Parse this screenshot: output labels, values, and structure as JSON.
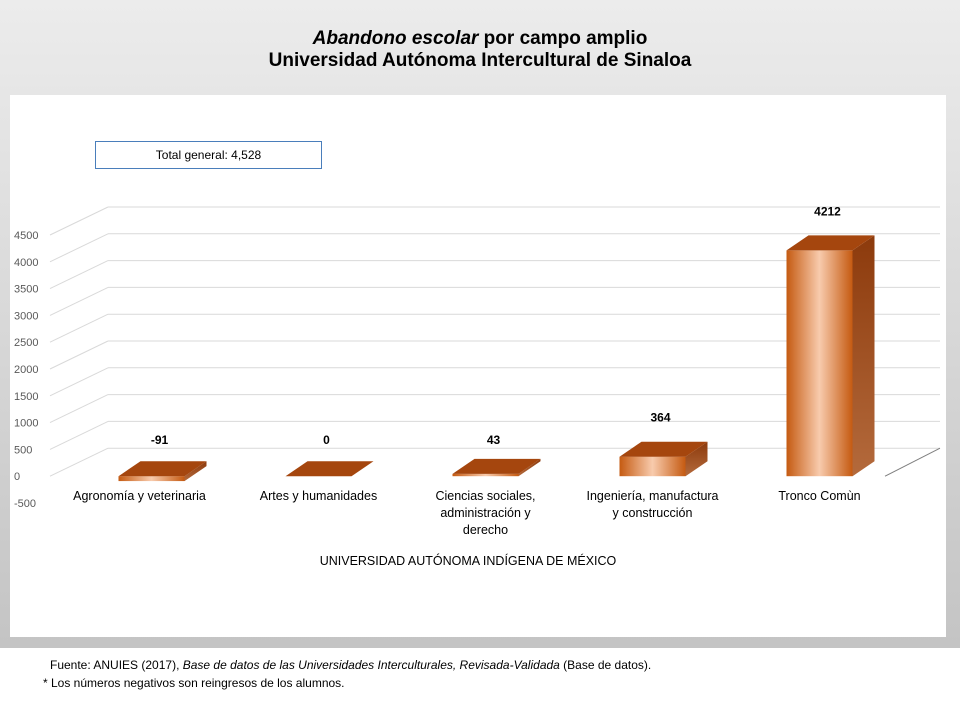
{
  "title": {
    "italic_part": "Abandono escolar",
    "rest": " por campo amplio",
    "subtitle": "Universidad Autónoma Intercultural de Sinaloa"
  },
  "total_box": "Total  general: 4,528",
  "footer": {
    "source_prefix": "Fuente: ANUIES (2017),  ",
    "source_italic": "Base de datos de las Universidades  Interculturales, Revisada-Validada",
    "source_suffix": "  (Base de datos).",
    "note": "* Los números negativos  son reingresos  de los alumnos."
  },
  "colors": {
    "bar_front_dark": "#c55a11",
    "bar_front_light": "#f8cbad",
    "bar_top": "#a5460e",
    "bar_side": "#8c3a0c",
    "grid": "#d9d9d9"
  },
  "chart_data": {
    "type": "bar",
    "title": "Abandono escolar por campo amplio — Universidad Autónoma Intercultural de Sinaloa",
    "xlabel": "UNIVERSIDAD AUTÓNOMA INDÍGENA DE MÉXICO",
    "ylabel": "",
    "ylim": [
      -500,
      4500
    ],
    "yticks": [
      -500,
      0,
      500,
      1000,
      1500,
      2000,
      2500,
      3000,
      3500,
      4000,
      4500
    ],
    "grid": true,
    "legend": "none",
    "categories": [
      [
        "Agronomía y veterinaria"
      ],
      [
        "Artes y humanidades"
      ],
      [
        "Ciencias sociales,",
        "administración y",
        "derecho"
      ],
      [
        "Ingeniería, manufactura",
        "y construcción"
      ],
      [
        "Tronco Comùn"
      ]
    ],
    "values": [
      -91,
      0,
      43,
      364,
      4212
    ],
    "data_labels": [
      "-91",
      "0",
      "43",
      "364",
      "4212"
    ]
  }
}
